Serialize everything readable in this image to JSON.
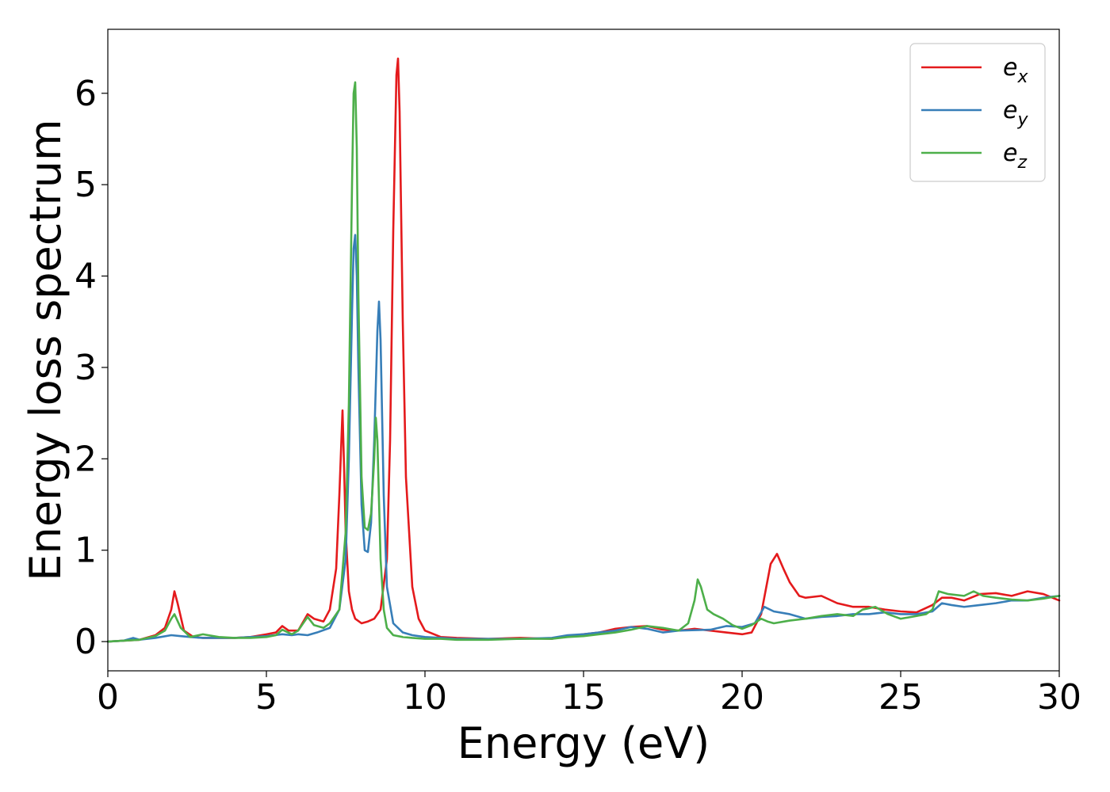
{
  "chart_data": {
    "type": "line",
    "title": "",
    "xlabel": "Energy (eV)",
    "ylabel": "Energy loss spectrum",
    "xlim": [
      0,
      30
    ],
    "ylim": [
      -0.32,
      6.7
    ],
    "xticks": [
      0,
      5,
      10,
      15,
      20,
      25,
      30
    ],
    "yticks": [
      0,
      1,
      2,
      3,
      4,
      5,
      6
    ],
    "grid": false,
    "legend_position": "top-right",
    "series": [
      {
        "name": "e",
        "subscript": "x",
        "color": "#e41a1c",
        "x": [
          0,
          0.5,
          1.0,
          1.5,
          1.8,
          2.0,
          2.1,
          2.2,
          2.4,
          2.7,
          3.0,
          3.5,
          4.0,
          4.5,
          5.0,
          5.3,
          5.5,
          5.7,
          6.0,
          6.3,
          6.5,
          6.8,
          7.0,
          7.2,
          7.3,
          7.4,
          7.45,
          7.5,
          7.6,
          7.7,
          7.8,
          8.0,
          8.2,
          8.4,
          8.6,
          8.8,
          8.9,
          9.0,
          9.1,
          9.15,
          9.2,
          9.3,
          9.4,
          9.6,
          9.8,
          10.0,
          10.5,
          11.0,
          12.0,
          13.0,
          14.0,
          14.5,
          15.0,
          15.5,
          16.0,
          16.5,
          17.0,
          17.5,
          18.0,
          18.5,
          19.0,
          19.5,
          20.0,
          20.3,
          20.6,
          20.9,
          21.1,
          21.3,
          21.5,
          21.8,
          22.0,
          22.5,
          23.0,
          23.5,
          24.0,
          24.5,
          25.0,
          25.5,
          26.0,
          26.3,
          26.6,
          27.0,
          27.5,
          28.0,
          28.5,
          29.0,
          29.5,
          30.0
        ],
        "values": [
          0.0,
          0.01,
          0.02,
          0.07,
          0.15,
          0.35,
          0.55,
          0.42,
          0.12,
          0.05,
          0.04,
          0.04,
          0.04,
          0.05,
          0.08,
          0.1,
          0.17,
          0.12,
          0.12,
          0.3,
          0.25,
          0.22,
          0.35,
          0.8,
          1.6,
          2.53,
          1.9,
          1.2,
          0.55,
          0.35,
          0.25,
          0.2,
          0.22,
          0.25,
          0.35,
          0.9,
          2.2,
          4.5,
          6.2,
          6.38,
          5.8,
          3.5,
          1.8,
          0.6,
          0.25,
          0.12,
          0.05,
          0.04,
          0.03,
          0.04,
          0.03,
          0.06,
          0.08,
          0.1,
          0.14,
          0.16,
          0.17,
          0.13,
          0.12,
          0.14,
          0.12,
          0.1,
          0.08,
          0.1,
          0.3,
          0.85,
          0.96,
          0.8,
          0.65,
          0.5,
          0.48,
          0.5,
          0.42,
          0.38,
          0.38,
          0.35,
          0.33,
          0.32,
          0.4,
          0.48,
          0.48,
          0.45,
          0.52,
          0.53,
          0.5,
          0.55,
          0.52,
          0.45
        ]
      },
      {
        "name": "e",
        "subscript": "y",
        "color": "#377eb8",
        "x": [
          0,
          0.5,
          0.8,
          1.0,
          1.5,
          2.0,
          2.3,
          2.6,
          3.0,
          3.5,
          4.0,
          4.5,
          5.0,
          5.5,
          5.8,
          6.0,
          6.3,
          6.6,
          7.0,
          7.3,
          7.5,
          7.6,
          7.7,
          7.75,
          7.8,
          7.85,
          7.9,
          8.0,
          8.1,
          8.2,
          8.3,
          8.4,
          8.5,
          8.55,
          8.6,
          8.7,
          8.8,
          9.0,
          9.3,
          9.6,
          10.0,
          10.5,
          11.0,
          12.0,
          13.0,
          14.0,
          14.5,
          15.0,
          16.0,
          16.5,
          17.0,
          17.5,
          18.0,
          19.0,
          19.5,
          20.0,
          20.4,
          20.7,
          21.0,
          21.5,
          22.0,
          22.5,
          23.0,
          23.5,
          24.0,
          24.5,
          25.0,
          25.5,
          26.0,
          26.3,
          26.6,
          27.0,
          27.5,
          28.0,
          28.5,
          29.0,
          29.5,
          30.0
        ],
        "values": [
          0.0,
          0.01,
          0.04,
          0.02,
          0.04,
          0.07,
          0.06,
          0.05,
          0.04,
          0.04,
          0.04,
          0.05,
          0.06,
          0.08,
          0.07,
          0.08,
          0.07,
          0.1,
          0.15,
          0.35,
          0.9,
          2.0,
          3.6,
          4.3,
          4.45,
          4.0,
          3.0,
          1.5,
          1.0,
          0.98,
          1.3,
          2.2,
          3.4,
          3.72,
          3.3,
          1.6,
          0.6,
          0.2,
          0.1,
          0.07,
          0.05,
          0.04,
          0.03,
          0.03,
          0.03,
          0.04,
          0.07,
          0.08,
          0.12,
          0.16,
          0.14,
          0.1,
          0.12,
          0.13,
          0.17,
          0.16,
          0.2,
          0.38,
          0.33,
          0.3,
          0.25,
          0.27,
          0.28,
          0.3,
          0.3,
          0.32,
          0.3,
          0.3,
          0.33,
          0.42,
          0.4,
          0.38,
          0.4,
          0.42,
          0.45,
          0.45,
          0.48,
          0.5
        ]
      },
      {
        "name": "e",
        "subscript": "z",
        "color": "#4daf4a",
        "x": [
          0,
          0.5,
          1.0,
          1.5,
          1.8,
          2.0,
          2.1,
          2.3,
          2.6,
          3.0,
          3.5,
          4.0,
          4.5,
          5.0,
          5.3,
          5.5,
          5.8,
          6.0,
          6.3,
          6.5,
          6.8,
          7.0,
          7.3,
          7.5,
          7.6,
          7.7,
          7.75,
          7.8,
          7.85,
          7.9,
          8.0,
          8.1,
          8.2,
          8.3,
          8.4,
          8.45,
          8.5,
          8.6,
          8.7,
          8.8,
          9.0,
          9.3,
          9.6,
          10.0,
          10.5,
          11.0,
          12.0,
          13.0,
          14.0,
          14.5,
          15.0,
          15.5,
          16.0,
          16.5,
          17.0,
          17.5,
          18.0,
          18.3,
          18.5,
          18.6,
          18.7,
          18.9,
          19.1,
          19.4,
          19.7,
          20.0,
          20.3,
          20.6,
          20.8,
          21.0,
          21.5,
          22.0,
          22.5,
          23.0,
          23.5,
          23.8,
          24.2,
          24.6,
          25.0,
          25.5,
          25.8,
          26.0,
          26.2,
          26.5,
          27.0,
          27.3,
          27.6,
          28.0,
          28.5,
          29.0,
          29.5,
          30.0
        ],
        "values": [
          0.0,
          0.01,
          0.02,
          0.06,
          0.12,
          0.25,
          0.3,
          0.15,
          0.05,
          0.08,
          0.05,
          0.04,
          0.04,
          0.05,
          0.07,
          0.13,
          0.08,
          0.12,
          0.27,
          0.18,
          0.15,
          0.2,
          0.35,
          1.2,
          2.6,
          5.0,
          6.0,
          6.12,
          5.4,
          3.8,
          1.8,
          1.25,
          1.22,
          1.4,
          2.0,
          2.45,
          2.2,
          0.9,
          0.35,
          0.15,
          0.07,
          0.05,
          0.04,
          0.03,
          0.03,
          0.02,
          0.02,
          0.03,
          0.03,
          0.05,
          0.06,
          0.08,
          0.1,
          0.13,
          0.17,
          0.15,
          0.12,
          0.2,
          0.45,
          0.68,
          0.6,
          0.35,
          0.3,
          0.25,
          0.18,
          0.14,
          0.18,
          0.25,
          0.22,
          0.2,
          0.23,
          0.25,
          0.28,
          0.3,
          0.28,
          0.35,
          0.38,
          0.3,
          0.25,
          0.28,
          0.3,
          0.35,
          0.55,
          0.52,
          0.5,
          0.55,
          0.5,
          0.48,
          0.46,
          0.45,
          0.47,
          0.5
        ]
      }
    ]
  }
}
